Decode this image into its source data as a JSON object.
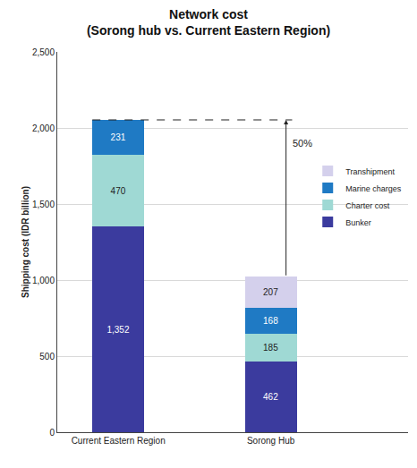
{
  "chart_data": {
    "type": "bar",
    "title": "Network cost (Sorong hub vs. Current Eastern Region)",
    "categories": [
      "Current Eastern Region",
      "Sorong Hub"
    ],
    "series": [
      {
        "name": "Bunker",
        "color": "#3b3b9e",
        "values": [
          1352,
          462
        ],
        "value_labels": [
          "1,352",
          "462"
        ]
      },
      {
        "name": "Charter cost",
        "color": "#9fd9d4",
        "values": [
          470,
          185
        ],
        "value_labels": [
          "470",
          "185"
        ]
      },
      {
        "name": "Marine charges",
        "color": "#1f7ac4",
        "values": [
          231,
          168
        ],
        "value_labels": [
          "231",
          "168"
        ]
      },
      {
        "name": "Transhipment",
        "color": "#d4d0ec",
        "values": [
          null,
          207
        ],
        "value_labels": [
          null,
          "207"
        ]
      }
    ],
    "ylabel": "Shipping cost (IDR billion)",
    "ylim": [
      0,
      2500
    ],
    "yticks": [
      0,
      500,
      {
        "value": 1000,
        "label": "1,000"
      },
      {
        "value": 1500,
        "label": "1,500"
      },
      {
        "value": 2000,
        "label": "2,000"
      },
      {
        "value": 2500,
        "label": "2,500"
      }
    ],
    "stacked": true,
    "data_labels": true,
    "grid": true,
    "legend": "right",
    "annotations": [
      {
        "text": "50%"
      }
    ]
  }
}
